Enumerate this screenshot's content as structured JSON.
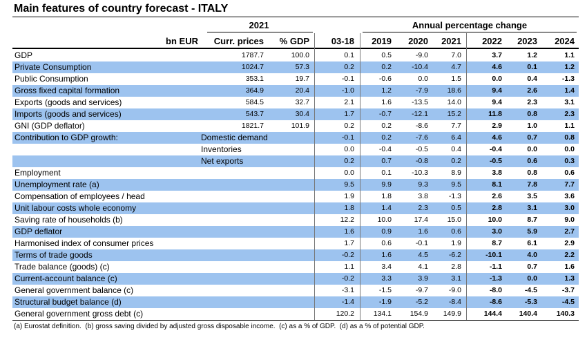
{
  "title": "Main features of country forecast - ITALY",
  "header": {
    "group_left": "2021",
    "group_right": "Annual percentage change",
    "columns": [
      "bn EUR",
      "Curr. prices",
      "% GDP",
      "03-18",
      "2019",
      "2020",
      "2021",
      "2022",
      "2023",
      "2024"
    ]
  },
  "rows": [
    {
      "label": "GDP",
      "curr": "1787.7",
      "pct": "100.0",
      "values": [
        "0.1",
        "0.5",
        "-9.0",
        "7.0",
        "3.7",
        "1.2",
        "1.1"
      ]
    },
    {
      "label": "Private Consumption",
      "curr": "1024.7",
      "pct": "57.3",
      "values": [
        "0.2",
        "0.2",
        "-10.4",
        "4.7",
        "4.6",
        "0.1",
        "1.2"
      ]
    },
    {
      "label": "Public Consumption",
      "curr": "353.1",
      "pct": "19.7",
      "values": [
        "-0.1",
        "-0.6",
        "0.0",
        "1.5",
        "0.0",
        "0.4",
        "-1.3"
      ]
    },
    {
      "label": "Gross fixed capital formation",
      "curr": "364.9",
      "pct": "20.4",
      "values": [
        "-1.0",
        "1.2",
        "-7.9",
        "18.6",
        "9.4",
        "2.6",
        "1.4"
      ]
    },
    {
      "label": "Exports (goods and services)",
      "curr": "584.5",
      "pct": "32.7",
      "values": [
        "2.1",
        "1.6",
        "-13.5",
        "14.0",
        "9.4",
        "2.3",
        "3.1"
      ]
    },
    {
      "label": "Imports (goods and services)",
      "curr": "543.7",
      "pct": "30.4",
      "values": [
        "1.7",
        "-0.7",
        "-12.1",
        "15.2",
        "11.8",
        "0.8",
        "2.3"
      ]
    },
    {
      "label": "GNI (GDP deflator)",
      "curr": "1821.7",
      "pct": "101.9",
      "values": [
        "0.2",
        "0.2",
        "-8.6",
        "7.7",
        "2.9",
        "1.0",
        "1.1"
      ]
    },
    {
      "label": "Contribution to GDP growth:",
      "sublabel": "Domestic demand",
      "values": [
        "-0.1",
        "0.2",
        "-7.6",
        "6.4",
        "4.6",
        "0.7",
        "0.8"
      ]
    },
    {
      "sublabel": "Inventories",
      "values": [
        "0.0",
        "-0.4",
        "-0.5",
        "0.4",
        "-0.4",
        "0.0",
        "0.0"
      ]
    },
    {
      "sublabel": "Net exports",
      "values": [
        "0.2",
        "0.7",
        "-0.8",
        "0.2",
        "-0.5",
        "0.6",
        "0.3"
      ]
    },
    {
      "label": "Employment",
      "values": [
        "0.0",
        "0.1",
        "-10.3",
        "8.9",
        "3.8",
        "0.8",
        "0.6"
      ]
    },
    {
      "label": "Unemployment rate (a)",
      "values": [
        "9.5",
        "9.9",
        "9.3",
        "9.5",
        "8.1",
        "7.8",
        "7.7"
      ]
    },
    {
      "label": "Compensation of employees / head",
      "values": [
        "1.9",
        "1.8",
        "3.8",
        "-1.3",
        "2.6",
        "3.5",
        "3.6"
      ]
    },
    {
      "label": "Unit labour costs whole economy",
      "values": [
        "1.8",
        "1.4",
        "2.3",
        "0.5",
        "2.8",
        "3.1",
        "3.0"
      ]
    },
    {
      "label": "Saving rate of households (b)",
      "values": [
        "12.2",
        "10.0",
        "17.4",
        "15.0",
        "10.0",
        "8.7",
        "9.0"
      ]
    },
    {
      "label": "GDP deflator",
      "values": [
        "1.6",
        "0.9",
        "1.6",
        "0.6",
        "3.0",
        "5.9",
        "2.7"
      ]
    },
    {
      "label": "Harmonised index of consumer prices",
      "values": [
        "1.7",
        "0.6",
        "-0.1",
        "1.9",
        "8.7",
        "6.1",
        "2.9"
      ]
    },
    {
      "label": "Terms of trade goods",
      "values": [
        "-0.2",
        "1.6",
        "4.5",
        "-6.2",
        "-10.1",
        "4.0",
        "2.2"
      ]
    },
    {
      "label": "Trade balance (goods) (c)",
      "values": [
        "1.1",
        "3.4",
        "4.1",
        "2.8",
        "-1.1",
        "0.7",
        "1.6"
      ]
    },
    {
      "label": "Current-account balance (c)",
      "values": [
        "-0.2",
        "3.3",
        "3.9",
        "3.1",
        "-1.3",
        "0.0",
        "1.3"
      ]
    },
    {
      "label": "General government balance (c)",
      "values": [
        "-3.1",
        "-1.5",
        "-9.7",
        "-9.0",
        "-8.0",
        "-4.5",
        "-3.7"
      ]
    },
    {
      "label": "Structural budget balance (d)",
      "values": [
        "-1.4",
        "-1.9",
        "-5.2",
        "-8.4",
        "-8.6",
        "-5.3",
        "-4.5"
      ]
    },
    {
      "label": "General government gross debt (c)",
      "values": [
        "120.2",
        "134.1",
        "154.9",
        "149.9",
        "144.4",
        "140.4",
        "140.3"
      ]
    }
  ],
  "footnote": "(a) Eurostat definition.  (b) gross saving divided by adjusted gross disposable income.  (c) as a % of GDP.  (d) as a % of potential GDP."
}
